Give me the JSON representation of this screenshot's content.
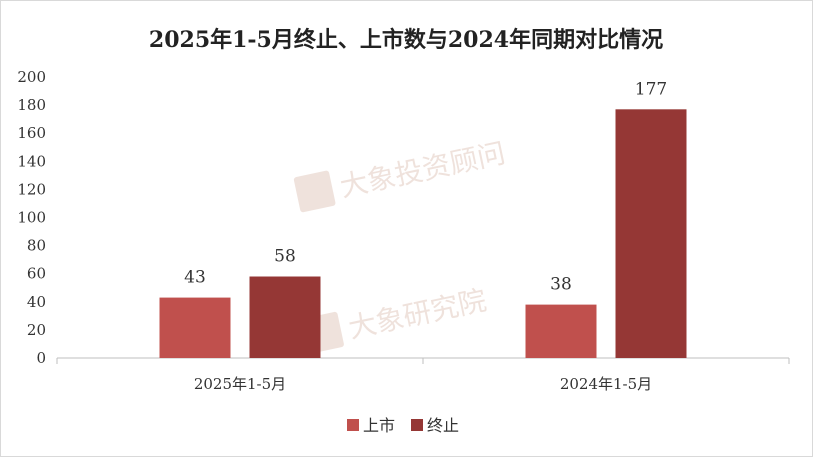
{
  "chart_data": {
    "type": "bar",
    "title": "2025年1-5月终止、上市数与2024年同期对比情况",
    "categories": [
      "2025年1-5月",
      "2024年1-5月"
    ],
    "series": [
      {
        "name": "上市",
        "values": [
          43,
          38
        ],
        "color": "#c0504d"
      },
      {
        "name": "终止",
        "values": [
          58,
          177
        ],
        "color": "#953735"
      }
    ],
    "ylim": [
      0,
      200
    ],
    "yticks": [
      0,
      20,
      40,
      60,
      80,
      100,
      120,
      140,
      160,
      180,
      200
    ],
    "xlabel": "",
    "ylabel": "",
    "grid": false,
    "legend_position": "bottom",
    "data_labels": true
  },
  "watermarks": [
    {
      "text": "大象投资顾问",
      "icon": "elephant-logo-icon"
    },
    {
      "text": "大象研究院",
      "icon": "elephant-logo-icon"
    }
  ]
}
